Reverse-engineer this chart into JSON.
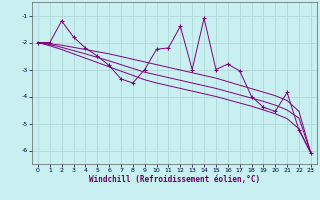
{
  "xlabel": "Windchill (Refroidissement éolien,°C)",
  "bg_color": "#c8f0f0",
  "line_color": "#800080",
  "grid_color": "#b0d8d8",
  "x_data": [
    0,
    1,
    2,
    3,
    4,
    5,
    6,
    7,
    8,
    9,
    10,
    11,
    12,
    13,
    14,
    15,
    16,
    17,
    18,
    19,
    20,
    21,
    22,
    23
  ],
  "y_main": [
    -2.0,
    -2.0,
    -1.2,
    -1.8,
    -2.2,
    -2.5,
    -2.85,
    -3.35,
    -3.5,
    -3.0,
    -2.25,
    -2.2,
    -1.4,
    -3.0,
    -1.1,
    -3.0,
    -2.8,
    -3.05,
    -4.0,
    -4.4,
    -4.55,
    -3.85,
    -5.25,
    -6.1
  ],
  "y_line1": [
    -2.0,
    -2.05,
    -2.1,
    -2.18,
    -2.26,
    -2.34,
    -2.42,
    -2.52,
    -2.62,
    -2.72,
    -2.82,
    -2.92,
    -3.02,
    -3.12,
    -3.22,
    -3.32,
    -3.45,
    -3.58,
    -3.71,
    -3.84,
    -3.97,
    -4.15,
    -4.55,
    -6.1
  ],
  "y_line2": [
    -2.0,
    -2.08,
    -2.18,
    -2.3,
    -2.42,
    -2.55,
    -2.68,
    -2.82,
    -2.96,
    -3.1,
    -3.2,
    -3.3,
    -3.4,
    -3.5,
    -3.6,
    -3.7,
    -3.82,
    -3.94,
    -4.06,
    -4.18,
    -4.32,
    -4.5,
    -4.8,
    -6.1
  ],
  "y_line3": [
    -2.0,
    -2.12,
    -2.26,
    -2.42,
    -2.58,
    -2.74,
    -2.9,
    -3.06,
    -3.22,
    -3.38,
    -3.5,
    -3.6,
    -3.7,
    -3.8,
    -3.9,
    -4.0,
    -4.12,
    -4.24,
    -4.36,
    -4.5,
    -4.64,
    -4.82,
    -5.2,
    -6.1
  ],
  "ylim": [
    -6.5,
    -0.5
  ],
  "xlim": [
    -0.5,
    23.5
  ],
  "yticks": [
    -6,
    -5,
    -4,
    -3,
    -2,
    -1
  ],
  "xticks": [
    0,
    1,
    2,
    3,
    4,
    5,
    6,
    7,
    8,
    9,
    10,
    11,
    12,
    13,
    14,
    15,
    16,
    17,
    18,
    19,
    20,
    21,
    22,
    23
  ]
}
